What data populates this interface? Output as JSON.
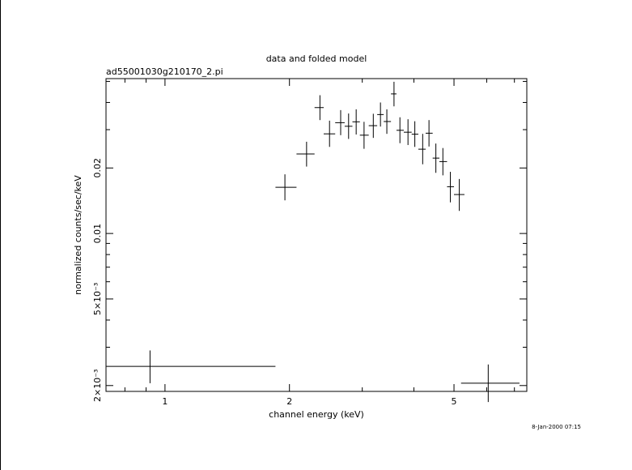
{
  "chart_data": {
    "type": "scatter",
    "title": "data and folded model",
    "subtitle": "ad55001030g210170_2.pi",
    "xlabel": "channel energy (keV)",
    "ylabel": "normalized counts/sec/keV",
    "timestamp": "8-Jan-2000 07:15",
    "x_scale": "log",
    "y_scale": "log",
    "xlim": [
      0.72,
      7.5
    ],
    "ylim": [
      0.00188,
      0.0515
    ],
    "x_ticks": [
      {
        "value": 1,
        "label": "1"
      },
      {
        "value": 2,
        "label": "2"
      },
      {
        "value": 5,
        "label": "5"
      }
    ],
    "y_ticks": [
      {
        "value": 0.002,
        "label": "2×10⁻³"
      },
      {
        "value": 0.005,
        "label": "5×10⁻³"
      },
      {
        "value": 0.01,
        "label": "0.01"
      },
      {
        "value": 0.02,
        "label": "0.02"
      }
    ],
    "grid": false,
    "series": [
      {
        "points": [
          {
            "x": 0.92,
            "xlo": 0.72,
            "xhi": 1.85,
            "y": 0.00245,
            "ylo": 0.00205,
            "yhi": 0.0029
          },
          {
            "x": 1.95,
            "xlo": 1.85,
            "xhi": 2.08,
            "y": 0.0163,
            "ylo": 0.0142,
            "yhi": 0.0187
          },
          {
            "x": 2.2,
            "xlo": 2.08,
            "xhi": 2.3,
            "y": 0.0232,
            "ylo": 0.0203,
            "yhi": 0.0264
          },
          {
            "x": 2.37,
            "xlo": 2.3,
            "xhi": 2.42,
            "y": 0.0379,
            "ylo": 0.0332,
            "yhi": 0.0432
          },
          {
            "x": 2.5,
            "xlo": 2.42,
            "xhi": 2.58,
            "y": 0.0287,
            "ylo": 0.025,
            "yhi": 0.033
          },
          {
            "x": 2.66,
            "xlo": 2.58,
            "xhi": 2.72,
            "y": 0.0323,
            "ylo": 0.0283,
            "yhi": 0.0369
          },
          {
            "x": 2.78,
            "xlo": 2.72,
            "xhi": 2.84,
            "y": 0.0311,
            "ylo": 0.0272,
            "yhi": 0.0356
          },
          {
            "x": 2.9,
            "xlo": 2.84,
            "xhi": 2.96,
            "y": 0.0326,
            "ylo": 0.0285,
            "yhi": 0.0372
          },
          {
            "x": 3.03,
            "xlo": 2.96,
            "xhi": 3.11,
            "y": 0.0283,
            "ylo": 0.0245,
            "yhi": 0.0326
          },
          {
            "x": 3.19,
            "xlo": 3.11,
            "xhi": 3.26,
            "y": 0.0313,
            "ylo": 0.0275,
            "yhi": 0.0355
          },
          {
            "x": 3.32,
            "xlo": 3.26,
            "xhi": 3.38,
            "y": 0.0352,
            "ylo": 0.031,
            "yhi": 0.04
          },
          {
            "x": 3.44,
            "xlo": 3.38,
            "xhi": 3.52,
            "y": 0.0327,
            "ylo": 0.0287,
            "yhi": 0.0372
          },
          {
            "x": 3.58,
            "xlo": 3.52,
            "xhi": 3.63,
            "y": 0.0438,
            "ylo": 0.0384,
            "yhi": 0.0498
          },
          {
            "x": 3.7,
            "xlo": 3.63,
            "xhi": 3.78,
            "y": 0.0298,
            "ylo": 0.026,
            "yhi": 0.0342
          },
          {
            "x": 3.87,
            "xlo": 3.78,
            "xhi": 3.95,
            "y": 0.0292,
            "ylo": 0.0255,
            "yhi": 0.0335
          },
          {
            "x": 4.02,
            "xlo": 3.95,
            "xhi": 4.1,
            "y": 0.0286,
            "ylo": 0.025,
            "yhi": 0.0328
          },
          {
            "x": 4.2,
            "xlo": 4.1,
            "xhi": 4.27,
            "y": 0.0244,
            "ylo": 0.0208,
            "yhi": 0.0287
          },
          {
            "x": 4.35,
            "xlo": 4.27,
            "xhi": 4.44,
            "y": 0.0289,
            "ylo": 0.0251,
            "yhi": 0.0332
          },
          {
            "x": 4.52,
            "xlo": 4.44,
            "xhi": 4.61,
            "y": 0.0222,
            "ylo": 0.019,
            "yhi": 0.0259
          },
          {
            "x": 4.7,
            "xlo": 4.61,
            "xhi": 4.81,
            "y": 0.0214,
            "ylo": 0.0185,
            "yhi": 0.0247
          },
          {
            "x": 4.9,
            "xlo": 4.81,
            "xhi": 5.0,
            "y": 0.0164,
            "ylo": 0.0139,
            "yhi": 0.0192
          },
          {
            "x": 5.15,
            "xlo": 5.0,
            "xhi": 5.3,
            "y": 0.0151,
            "ylo": 0.0127,
            "yhi": 0.0178
          },
          {
            "x": 6.05,
            "xlo": 5.2,
            "xhi": 7.2,
            "y": 0.00205,
            "ylo": 0.00168,
            "yhi": 0.0025
          }
        ]
      }
    ]
  }
}
